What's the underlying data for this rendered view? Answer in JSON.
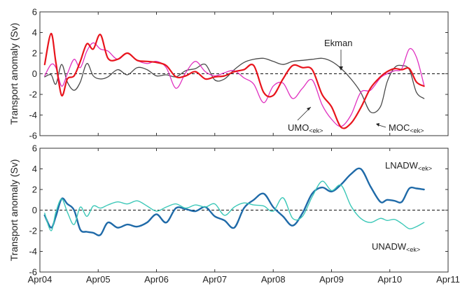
{
  "figure": {
    "x_tick_labels": [
      "Apr04",
      "Apr05",
      "Apr06",
      "Apr07",
      "Apr08",
      "Apr09",
      "Apr10",
      "Apr11"
    ]
  },
  "chart_data": [
    {
      "type": "line",
      "ylabel": "Transport anomaly (Sv)",
      "ylim": [
        -6,
        6
      ],
      "yticks": [
        -6,
        -4,
        -2,
        0,
        2,
        4,
        6
      ],
      "xlim": [
        "2004-04-01",
        "2011-04-01"
      ],
      "xticks": [
        "2004-04-01",
        "2005-04-01",
        "2006-04-01",
        "2007-04-01",
        "2008-04-01",
        "2009-04-01",
        "2010-04-01",
        "2011-04-01"
      ],
      "zero_line": "dashed",
      "grid": false,
      "series": [
        {
          "name": "Ekman",
          "color": "#4a4a4a",
          "x": [
            "2004-05-01",
            "2004-06-10",
            "2004-07-10",
            "2004-08-15",
            "2004-09-20",
            "2004-11-01",
            "2004-12-10",
            "2005-01-20",
            "2005-03-01",
            "2005-04-15",
            "2005-06-01",
            "2005-08-01",
            "2005-10-01",
            "2005-12-01",
            "2006-02-01",
            "2006-04-01",
            "2006-06-01",
            "2006-08-01",
            "2006-10-01",
            "2006-12-01",
            "2007-02-01",
            "2007-04-01",
            "2007-06-01",
            "2007-08-01",
            "2007-10-01",
            "2007-12-01",
            "2008-02-01",
            "2008-04-01",
            "2008-06-01",
            "2008-08-01",
            "2008-10-01",
            "2008-12-01",
            "2009-02-01",
            "2009-04-01",
            "2009-06-01",
            "2009-08-01",
            "2009-10-01",
            "2009-12-01",
            "2010-02-01",
            "2010-03-15",
            "2010-05-01",
            "2010-06-15",
            "2010-08-01",
            "2010-09-15",
            "2010-11-01"
          ],
          "y": [
            -0.3,
            -0.1,
            -1.0,
            0.9,
            -0.8,
            -1.6,
            -0.8,
            1.0,
            -0.2,
            -0.5,
            -0.3,
            0.4,
            -0.1,
            0.6,
            0.4,
            -0.2,
            -0.1,
            -0.3,
            0.3,
            0.5,
            0.9,
            -0.6,
            -0.5,
            0.4,
            1.1,
            1.4,
            1.5,
            1.2,
            0.9,
            1.2,
            1.3,
            1.4,
            1.5,
            1.2,
            0.5,
            -0.5,
            -1.8,
            -3.7,
            -3.2,
            -0.8,
            0.6,
            0.8,
            0.4,
            -1.8,
            -2.4
          ]
        },
        {
          "name": "UMO<ek>",
          "color": "#e030c0",
          "x": [
            "2004-05-01",
            "2004-06-10",
            "2004-07-10",
            "2004-08-15",
            "2004-09-20",
            "2004-11-01",
            "2004-12-10",
            "2005-01-20",
            "2005-03-01",
            "2005-04-15",
            "2005-06-01",
            "2005-08-01",
            "2005-10-01",
            "2005-12-01",
            "2006-02-01",
            "2006-04-01",
            "2006-06-01",
            "2006-08-01",
            "2006-10-01",
            "2006-12-01",
            "2007-02-01",
            "2007-04-01",
            "2007-06-01",
            "2007-08-01",
            "2007-10-01",
            "2007-12-01",
            "2008-02-01",
            "2008-04-01",
            "2008-06-01",
            "2008-08-01",
            "2008-10-01",
            "2008-12-01",
            "2009-02-01",
            "2009-04-01",
            "2009-06-01",
            "2009-08-01",
            "2009-10-01",
            "2009-12-01",
            "2010-02-01",
            "2010-03-15",
            "2010-05-01",
            "2010-06-15",
            "2010-08-01",
            "2010-09-15",
            "2010-11-01"
          ],
          "y": [
            -0.2,
            0.9,
            0.6,
            -1.2,
            0.0,
            1.4,
            0.6,
            2.2,
            3.0,
            2.4,
            2.2,
            1.4,
            2.0,
            1.3,
            1.0,
            1.2,
            0.6,
            -1.4,
            0.1,
            1.2,
            0.2,
            -0.2,
            0.1,
            0.3,
            -0.4,
            -1.0,
            -2.8,
            -1.2,
            -0.9,
            -2.4,
            -1.4,
            -0.6,
            -3.0,
            -4.4,
            -5.1,
            -4.0,
            -1.8,
            -1.6,
            -0.4,
            0.0,
            0.3,
            0.5,
            2.4,
            1.6,
            -1.1
          ]
        },
        {
          "name": "MOC<ek>",
          "color": "#e8141c",
          "x": [
            "2004-05-01",
            "2004-06-10",
            "2004-07-10",
            "2004-08-15",
            "2004-09-20",
            "2004-11-01",
            "2004-12-10",
            "2005-01-20",
            "2005-03-01",
            "2005-04-15",
            "2005-06-01",
            "2005-08-01",
            "2005-10-01",
            "2005-12-01",
            "2006-02-01",
            "2006-04-01",
            "2006-06-01",
            "2006-08-01",
            "2006-10-01",
            "2006-12-01",
            "2007-02-01",
            "2007-04-01",
            "2007-06-01",
            "2007-08-01",
            "2007-10-01",
            "2007-12-01",
            "2008-02-01",
            "2008-04-01",
            "2008-06-01",
            "2008-08-01",
            "2008-10-01",
            "2008-12-01",
            "2009-02-01",
            "2009-04-01",
            "2009-06-01",
            "2009-08-01",
            "2009-10-01",
            "2009-12-01",
            "2010-02-01",
            "2010-03-15",
            "2010-05-01",
            "2010-06-15",
            "2010-08-01",
            "2010-09-15",
            "2010-11-01"
          ],
          "y": [
            0.9,
            3.9,
            1.1,
            -2.1,
            -0.5,
            -0.2,
            1.2,
            2.9,
            2.4,
            3.8,
            1.5,
            1.4,
            2.0,
            1.3,
            1.2,
            1.1,
            0.8,
            -0.3,
            -0.2,
            0.2,
            -0.5,
            -0.3,
            -0.2,
            0.2,
            0.4,
            0.8,
            -1.8,
            -2.1,
            -0.5,
            0.8,
            0.6,
            0.4,
            -2.0,
            -3.2,
            -5.2,
            -4.8,
            -3.3,
            -1.4,
            -0.3,
            0.2,
            0.5,
            0.4,
            0.5,
            -0.8,
            -1.2
          ]
        }
      ],
      "annotations": [
        "Ekman",
        "UMO",
        "<ek>",
        "MOC",
        "<ek>"
      ]
    },
    {
      "type": "line",
      "ylabel": "Transport anomaly (Sv)",
      "ylim": [
        -6,
        6
      ],
      "yticks": [
        -6,
        -4,
        -2,
        0,
        2,
        4,
        6
      ],
      "xlim": [
        "2004-04-01",
        "2011-04-01"
      ],
      "xticks": [
        "2004-04-01",
        "2005-04-01",
        "2006-04-01",
        "2007-04-01",
        "2008-04-01",
        "2009-04-01",
        "2010-04-01",
        "2011-04-01"
      ],
      "zero_line": "dashed",
      "grid": false,
      "series": [
        {
          "name": "LNADW<ek>",
          "color": "#1f6aa8",
          "x": [
            "2004-05-01",
            "2004-06-10",
            "2004-07-10",
            "2004-08-15",
            "2004-09-20",
            "2004-11-01",
            "2004-12-10",
            "2005-01-20",
            "2005-03-01",
            "2005-04-15",
            "2005-06-01",
            "2005-08-01",
            "2005-10-01",
            "2005-12-01",
            "2006-02-01",
            "2006-04-01",
            "2006-06-01",
            "2006-08-01",
            "2006-10-01",
            "2006-12-01",
            "2007-02-01",
            "2007-04-01",
            "2007-06-01",
            "2007-08-01",
            "2007-10-01",
            "2007-12-01",
            "2008-02-01",
            "2008-04-01",
            "2008-06-01",
            "2008-08-01",
            "2008-10-01",
            "2008-12-01",
            "2009-02-01",
            "2009-04-01",
            "2009-06-01",
            "2009-08-01",
            "2009-10-01",
            "2009-12-01",
            "2010-02-01",
            "2010-03-15",
            "2010-05-01",
            "2010-06-15",
            "2010-08-01",
            "2010-09-15",
            "2010-11-01"
          ],
          "y": [
            -0.5,
            -1.7,
            -0.6,
            1.1,
            0.6,
            0.0,
            -1.9,
            -2.1,
            -2.2,
            -2.4,
            -1.2,
            -1.7,
            -1.4,
            -1.6,
            -1.2,
            -0.4,
            -1.2,
            0.2,
            0.1,
            -0.1,
            0.3,
            -0.6,
            -1.0,
            -1.7,
            0.2,
            1.0,
            1.6,
            0.3,
            -0.6,
            -1.5,
            -0.3,
            1.6,
            2.2,
            1.8,
            2.5,
            3.5,
            4.0,
            2.3,
            0.8,
            1.0,
            0.9,
            0.8,
            2.1,
            2.1,
            2.0
          ]
        },
        {
          "name": "UNADW<ek>",
          "color": "#3cc8b8",
          "x": [
            "2004-05-01",
            "2004-06-10",
            "2004-07-10",
            "2004-08-15",
            "2004-09-20",
            "2004-11-01",
            "2004-12-10",
            "2005-01-20",
            "2005-03-01",
            "2005-04-15",
            "2005-06-01",
            "2005-08-01",
            "2005-10-01",
            "2005-12-01",
            "2006-02-01",
            "2006-04-01",
            "2006-06-01",
            "2006-08-01",
            "2006-10-01",
            "2006-12-01",
            "2007-02-01",
            "2007-04-01",
            "2007-06-01",
            "2007-08-01",
            "2007-10-01",
            "2007-12-01",
            "2008-02-01",
            "2008-04-01",
            "2008-06-01",
            "2008-08-01",
            "2008-10-01",
            "2008-12-01",
            "2009-02-01",
            "2009-04-01",
            "2009-06-01",
            "2009-08-01",
            "2009-10-01",
            "2009-12-01",
            "2010-02-01",
            "2010-03-15",
            "2010-05-01",
            "2010-06-15",
            "2010-08-01",
            "2010-09-15",
            "2010-11-01"
          ],
          "y": [
            -0.3,
            -2.0,
            -0.2,
            1.1,
            -0.2,
            -1.4,
            0.3,
            -0.6,
            0.4,
            0.2,
            0.5,
            0.8,
            0.6,
            0.9,
            0.4,
            -0.1,
            0.3,
            0.6,
            0.2,
            0.5,
            0.3,
            0.6,
            -0.5,
            0.3,
            0.7,
            0.5,
            0.4,
            -0.1,
            1.2,
            -0.8,
            -0.6,
            1.3,
            2.8,
            1.9,
            2.4,
            0.4,
            -0.8,
            -1.2,
            -0.8,
            -1.0,
            -0.9,
            -1.3,
            -1.8,
            -1.6,
            -1.2
          ]
        }
      ],
      "annotations": [
        "LNADW",
        "<ek>",
        "UNADW",
        "<ek>"
      ]
    }
  ]
}
